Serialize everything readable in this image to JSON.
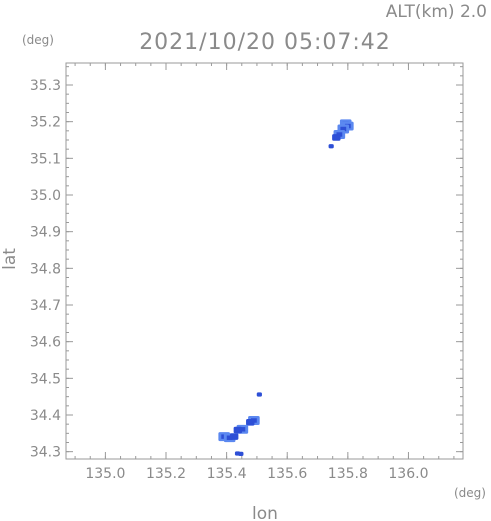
{
  "header": {
    "altitude_label": "ALT(km)  2.0",
    "timestamp": "2021/10/20  05:07:42"
  },
  "chart_data": {
    "type": "scatter",
    "title": "2021/10/20  05:07:42",
    "xlabel": "lon",
    "ylabel": "lat",
    "x_unit": "(deg)",
    "y_unit": "(deg)",
    "xlim": [
      134.87,
      136.18
    ],
    "ylim": [
      34.28,
      35.36
    ],
    "x_ticks": [
      135.0,
      135.2,
      135.4,
      135.6,
      135.8,
      136.0
    ],
    "x_tick_labels": [
      "135.0",
      "135.2",
      "135.4",
      "135.6",
      "135.8",
      "136.0"
    ],
    "y_ticks": [
      34.3,
      34.4,
      34.5,
      34.6,
      34.7,
      34.8,
      34.9,
      35.0,
      35.1,
      35.2,
      35.3
    ],
    "y_tick_labels": [
      "34.3",
      "34.4",
      "34.5",
      "34.6",
      "34.7",
      "34.8",
      "34.9",
      "35.0",
      "35.1",
      "35.2",
      "35.3"
    ],
    "grid": false,
    "colors": {
      "echo_dark": "#2d4fd6",
      "echo_light": "#5b88f0",
      "axis": "#9a9a9a"
    },
    "series": [
      {
        "points": [
          {
            "lon": 135.793,
            "lat": 35.194,
            "size": 3
          },
          {
            "lon": 135.8,
            "lat": 35.188,
            "size": 3
          },
          {
            "lon": 135.785,
            "lat": 35.18,
            "size": 3
          },
          {
            "lon": 135.772,
            "lat": 35.165,
            "size": 3
          },
          {
            "lon": 135.762,
            "lat": 35.157,
            "size": 2
          },
          {
            "lon": 135.745,
            "lat": 35.133,
            "size": 1
          },
          {
            "lon": 135.508,
            "lat": 34.456,
            "size": 1
          },
          {
            "lon": 135.49,
            "lat": 34.385,
            "size": 3
          },
          {
            "lon": 135.478,
            "lat": 34.38,
            "size": 2
          },
          {
            "lon": 135.452,
            "lat": 34.361,
            "size": 3
          },
          {
            "lon": 135.437,
            "lat": 34.359,
            "size": 2
          },
          {
            "lon": 135.392,
            "lat": 34.341,
            "size": 3
          },
          {
            "lon": 135.41,
            "lat": 34.338,
            "size": 3
          },
          {
            "lon": 135.425,
            "lat": 34.341,
            "size": 2
          },
          {
            "lon": 135.436,
            "lat": 34.295,
            "size": 1
          },
          {
            "lon": 135.447,
            "lat": 34.294,
            "size": 1
          }
        ]
      }
    ]
  }
}
